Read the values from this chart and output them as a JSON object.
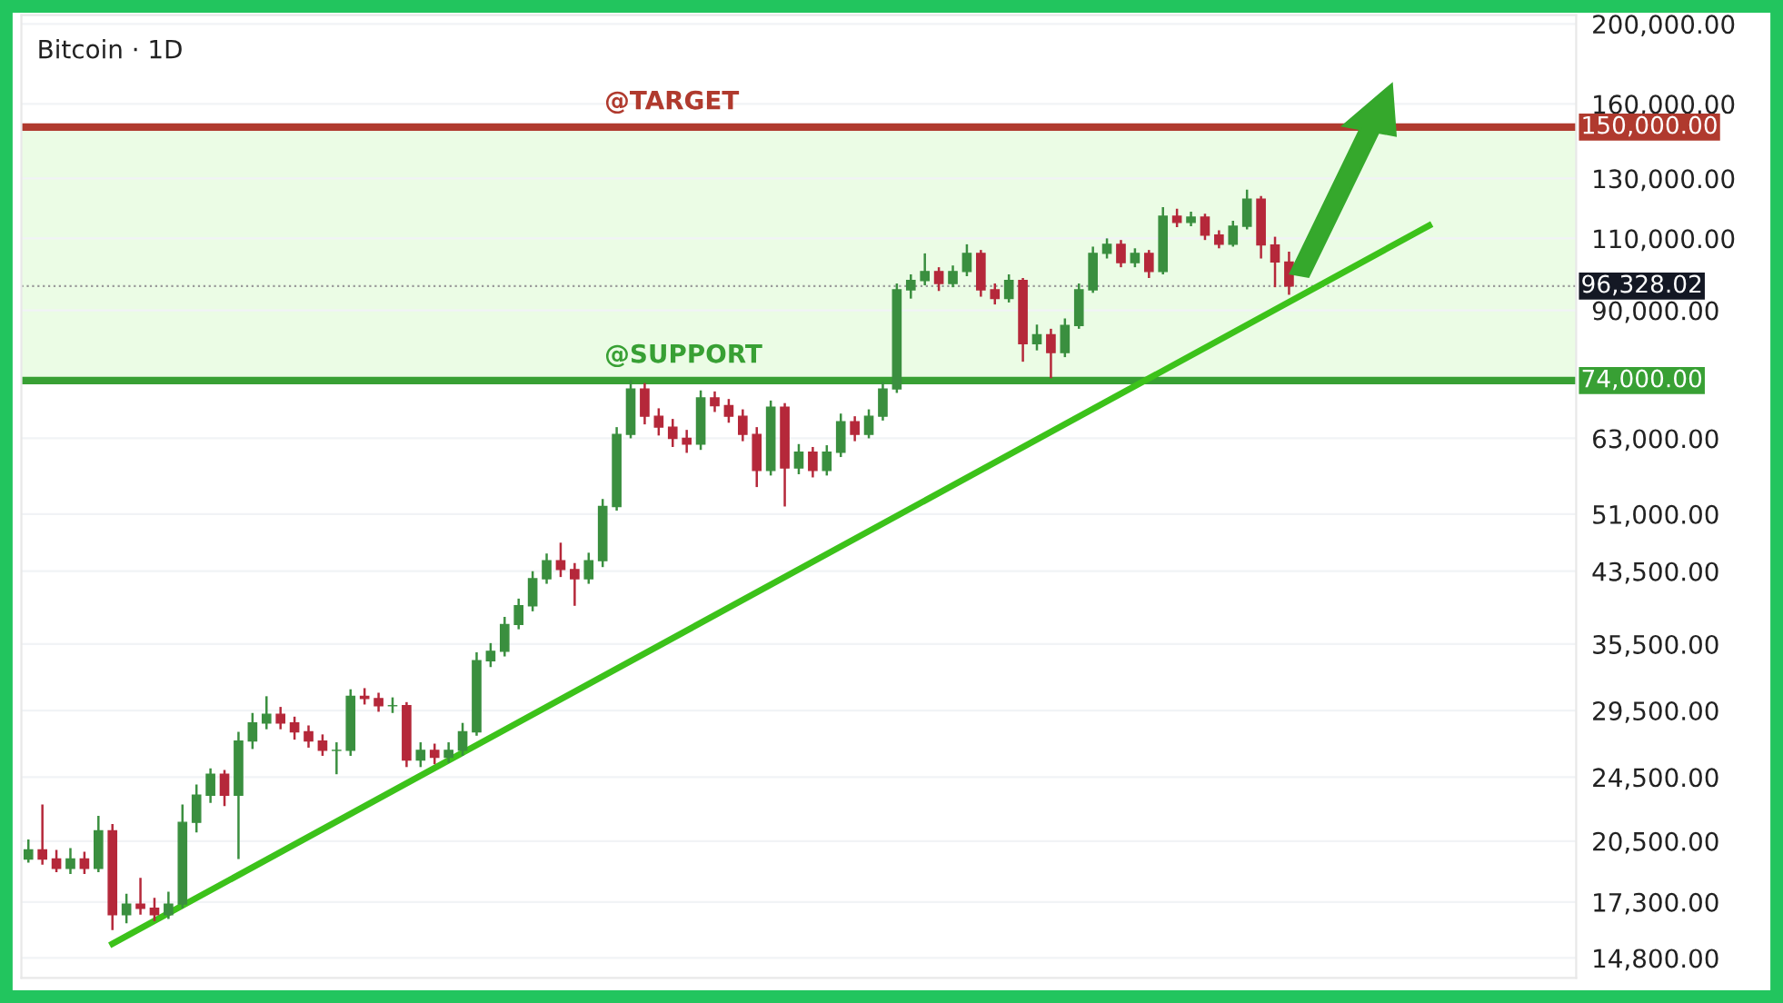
{
  "chart_data": {
    "type": "candlestick",
    "title": "Bitcoin · 1D",
    "log": "y",
    "ylim": [
      14000,
      205000
    ],
    "tick_labels": "y",
    "categories": [
      null,
      null,
      null,
      null,
      null,
      null,
      null,
      null,
      null,
      null,
      null,
      null,
      null,
      null,
      null,
      null,
      null,
      null,
      null,
      null,
      null,
      null,
      null,
      null,
      null,
      null,
      null,
      null,
      null,
      null,
      null,
      null,
      null,
      null,
      null,
      null,
      null,
      null,
      null,
      null,
      null,
      null,
      null,
      null,
      null,
      null,
      null,
      null,
      null,
      null,
      null,
      null,
      null,
      null,
      null,
      null,
      null,
      null,
      null,
      null,
      null,
      null,
      null,
      null,
      null,
      null,
      null,
      null,
      null,
      null,
      null,
      null,
      null,
      null,
      null,
      null,
      null,
      null,
      null,
      null,
      null,
      null,
      null,
      null,
      null,
      null,
      null,
      null,
      null,
      null,
      null,
      null,
      null,
      null,
      null,
      null,
      null,
      null,
      null,
      null,
      null,
      null,
      null,
      null,
      null,
      null,
      null,
      null,
      null,
      null,
      null
    ],
    "grid": "y",
    "legend": false,
    "yticks": [
      {
        "value": 14800,
        "label": "14,800.00"
      },
      {
        "value": 17300,
        "label": "17,300.00"
      },
      {
        "value": 20500,
        "label": "20,500.00"
      },
      {
        "value": 24500,
        "label": "24,500.00"
      },
      {
        "value": 29500,
        "label": "29,500.00"
      },
      {
        "value": 35500,
        "label": "35,500.00"
      },
      {
        "value": 43500,
        "label": "43,500.00"
      },
      {
        "value": 51000,
        "label": "51,000.00"
      },
      {
        "value": 63000,
        "label": "63,000.00"
      },
      {
        "value": 90000,
        "label": "90,000.00"
      },
      {
        "value": 110000,
        "label": "110,000.00"
      },
      {
        "value": 130000,
        "label": "130,000.00"
      },
      {
        "value": 160000,
        "label": "160,000.00"
      },
      {
        "value": 200000,
        "label": "200,000.00"
      }
    ],
    "ref_lines": [
      {
        "axis": "y",
        "value": 150000,
        "label": "@TARGET",
        "color": "#b03a2e",
        "line_style": "solid"
      },
      {
        "axis": "y",
        "value": 74000,
        "label": "@SUPPORT",
        "color": "#38a034",
        "line_style": "solid"
      },
      {
        "axis": "y",
        "value": 96328.02,
        "label": null,
        "color": "#9a9a9a",
        "line_style": "dotted"
      }
    ],
    "bands": [
      {
        "axis": "y",
        "from": 74000,
        "to": 150000,
        "label": null,
        "color": "#ebfce5"
      }
    ],
    "series": [
      {
        "ohlc": [
          [
            19500,
            20600,
            19300,
            20000
          ],
          [
            20000,
            22700,
            19200,
            19500
          ],
          [
            19500,
            20000,
            18800,
            19000
          ],
          [
            19000,
            20100,
            18700,
            19500
          ],
          [
            19500,
            19900,
            18700,
            19000
          ],
          [
            19000,
            22000,
            18800,
            21100
          ],
          [
            21100,
            21500,
            16000,
            16700
          ],
          [
            16700,
            17700,
            16300,
            17200
          ],
          [
            17200,
            18500,
            16700,
            17000
          ],
          [
            17000,
            17500,
            16400,
            16700
          ],
          [
            16700,
            17800,
            16500,
            17200
          ],
          [
            17200,
            22700,
            17000,
            21600
          ],
          [
            21600,
            24000,
            21000,
            23300
          ],
          [
            23300,
            25100,
            22800,
            24700
          ],
          [
            24700,
            25000,
            22600,
            23300
          ],
          [
            23300,
            27800,
            19500,
            27100
          ],
          [
            27100,
            29300,
            26500,
            28500
          ],
          [
            28500,
            30700,
            28000,
            29200
          ],
          [
            29200,
            29800,
            28000,
            28500
          ],
          [
            28500,
            29000,
            27200,
            27800
          ],
          [
            27800,
            28300,
            26600,
            27100
          ],
          [
            27100,
            27600,
            26000,
            26400
          ],
          [
            26400,
            27000,
            24700,
            26400
          ],
          [
            26400,
            31300,
            26000,
            30700
          ],
          [
            30700,
            31400,
            30000,
            30500
          ],
          [
            30500,
            31000,
            29400,
            29900
          ],
          [
            29900,
            30600,
            29300,
            29900
          ],
          [
            29900,
            30200,
            25200,
            25700
          ],
          [
            25700,
            27000,
            25200,
            26400
          ],
          [
            26400,
            26900,
            25400,
            25900
          ],
          [
            25900,
            27000,
            25500,
            26400
          ],
          [
            26400,
            28500,
            26000,
            27800
          ],
          [
            27800,
            34700,
            27500,
            33900
          ],
          [
            33900,
            35600,
            33300,
            34800
          ],
          [
            34800,
            38300,
            34300,
            37500
          ],
          [
            37500,
            40300,
            37000,
            39500
          ],
          [
            39500,
            43500,
            38900,
            42600
          ],
          [
            42600,
            45700,
            42000,
            44800
          ],
          [
            44800,
            47100,
            42800,
            43700
          ],
          [
            43700,
            44500,
            39500,
            42600
          ],
          [
            42600,
            45800,
            42000,
            44800
          ],
          [
            44800,
            53200,
            44000,
            52100
          ],
          [
            52100,
            65000,
            51500,
            63700
          ],
          [
            63700,
            74100,
            63000,
            72300
          ],
          [
            72300,
            73500,
            65500,
            67000
          ],
          [
            67000,
            68500,
            63500,
            65000
          ],
          [
            65000,
            66500,
            61500,
            63000
          ],
          [
            63000,
            64500,
            60500,
            62000
          ],
          [
            62000,
            72000,
            61000,
            70500
          ],
          [
            70500,
            71800,
            67800,
            69000
          ],
          [
            69000,
            70300,
            65800,
            67000
          ],
          [
            67000,
            68300,
            62500,
            63700
          ],
          [
            63700,
            65000,
            55000,
            57600
          ],
          [
            57600,
            70000,
            56800,
            68700
          ],
          [
            68700,
            69500,
            52100,
            58000
          ],
          [
            58000,
            62000,
            57000,
            60600
          ],
          [
            60600,
            61500,
            56500,
            57600
          ],
          [
            57600,
            61800,
            56800,
            60600
          ],
          [
            60600,
            67500,
            59800,
            66000
          ],
          [
            66000,
            67000,
            62500,
            63700
          ],
          [
            63700,
            68300,
            63000,
            67000
          ],
          [
            67000,
            73700,
            66200,
            72300
          ],
          [
            72300,
            97000,
            71500,
            95300
          ],
          [
            95300,
            99500,
            93000,
            97800
          ],
          [
            97800,
            105500,
            96500,
            100300
          ],
          [
            100300,
            101500,
            95000,
            97000
          ],
          [
            97000,
            102000,
            96000,
            100300
          ],
          [
            100300,
            108200,
            99000,
            105500
          ],
          [
            105500,
            106500,
            93500,
            95300
          ],
          [
            95300,
            97000,
            91500,
            93000
          ],
          [
            93000,
            99500,
            92000,
            97800
          ],
          [
            97800,
            98500,
            78000,
            82000
          ],
          [
            82000,
            86500,
            80500,
            84100
          ],
          [
            84100,
            85500,
            74500,
            80000
          ],
          [
            80000,
            88000,
            79000,
            86300
          ],
          [
            86300,
            97000,
            85500,
            95300
          ],
          [
            95300,
            107500,
            94500,
            105500
          ],
          [
            105500,
            110000,
            104000,
            108200
          ],
          [
            108200,
            109500,
            101500,
            102800
          ],
          [
            102800,
            107000,
            101500,
            105500
          ],
          [
            105500,
            106500,
            98500,
            100300
          ],
          [
            100300,
            120000,
            99500,
            117000
          ],
          [
            117000,
            119500,
            113500,
            115000
          ],
          [
            115000,
            118500,
            113800,
            116700
          ],
          [
            116700,
            117800,
            109500,
            111000
          ],
          [
            111000,
            112500,
            107000,
            108200
          ],
          [
            108200,
            115500,
            107500,
            113800
          ],
          [
            113800,
            126000,
            112800,
            122700
          ],
          [
            122700,
            123800,
            104000,
            108000
          ],
          [
            108000,
            110500,
            96000,
            103000
          ],
          [
            103000,
            106000,
            94000,
            96328.02
          ],
          null,
          null,
          null,
          null,
          null,
          null,
          null,
          null,
          null,
          null,
          null,
          null,
          null,
          null,
          null,
          null,
          null,
          null,
          null,
          null
        ]
      },
      {
        "type": "line",
        "values": [
          null,
          null,
          null,
          null,
          null,
          null,
          15400,
          null,
          null,
          null,
          null,
          null,
          null,
          null,
          null,
          null,
          null,
          null,
          null,
          null,
          null,
          null,
          null,
          null,
          null,
          null,
          null,
          null,
          null,
          null,
          null,
          null,
          null,
          null,
          null,
          null,
          null,
          null,
          null,
          null,
          null,
          null,
          null,
          null,
          null,
          null,
          null,
          null,
          null,
          null,
          null,
          null,
          null,
          null,
          null,
          null,
          null,
          null,
          null,
          null,
          null,
          null,
          null,
          null,
          null,
          null,
          null,
          null,
          null,
          null,
          null,
          null,
          null,
          null,
          null,
          null,
          null,
          null,
          null,
          null,
          null,
          null,
          null,
          null,
          null,
          null,
          null,
          null,
          null,
          null,
          null,
          null,
          null,
          null,
          null,
          null,
          null,
          null,
          null,
          null,
          114000,
          null,
          null,
          null,
          null,
          null,
          null,
          null,
          null,
          null,
          null
        ],
        "color": "#3cc21a",
        "line_style": "solid",
        "marker": "none"
      }
    ],
    "annotations": [
      "150,000.00",
      "74,000.00",
      "96,328.02"
    ]
  }
}
